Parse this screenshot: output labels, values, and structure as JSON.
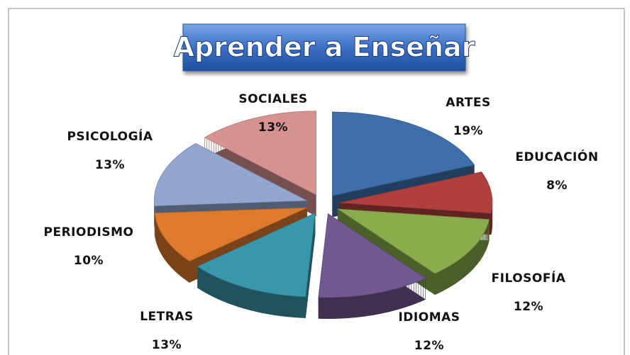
{
  "chart_data": {
    "type": "pie",
    "title": "Aprender a Enseñar",
    "categories": [
      "ARTES",
      "EDUCACIÓN",
      "FILOSOFÍA",
      "IDIOMAS",
      "LETRAS",
      "PERIODISMO",
      "PSICOLOGÍA",
      "SOCIALES"
    ],
    "values": [
      19,
      8,
      12,
      12,
      13,
      10,
      13,
      13
    ],
    "value_labels": [
      "19%",
      "8%",
      "12%",
      "12%",
      "13%",
      "10%",
      "13%",
      "13%"
    ],
    "colors": [
      "#3f6fab",
      "#b0403d",
      "#8aac4c",
      "#725891",
      "#3a96ab",
      "#dd7a2e",
      "#93a6d0",
      "#d69290"
    ]
  }
}
